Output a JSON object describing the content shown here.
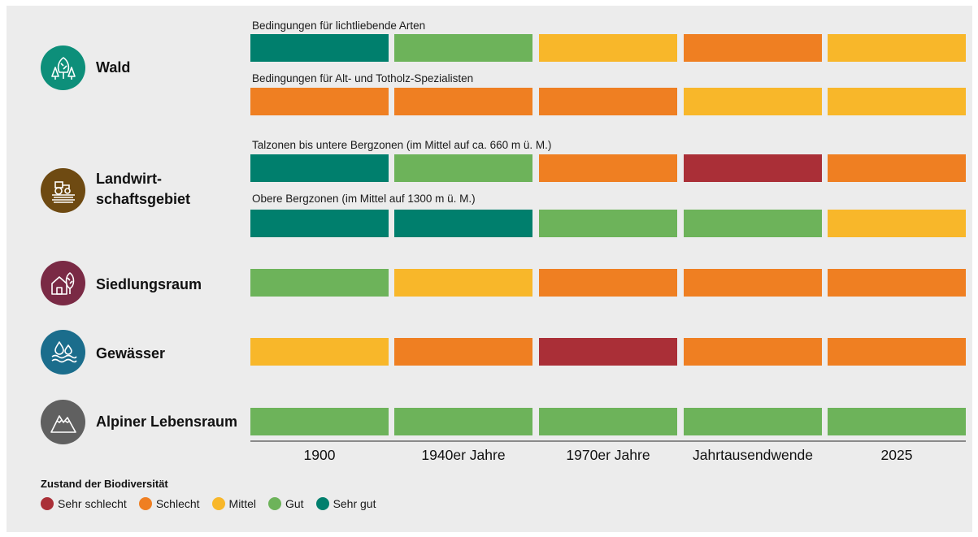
{
  "chart_data": {
    "type": "heatmap",
    "title": "",
    "categories": [
      "1900",
      "1940er Jahre",
      "1970er Jahre",
      "Jahrtausendwende",
      "2025"
    ],
    "legend": {
      "title": "Zustand der Biodiversität",
      "levels": [
        {
          "key": "sehr_schlecht",
          "label": "Sehr schlecht",
          "color": "#aa2f37"
        },
        {
          "key": "schlecht",
          "label": "Schlecht",
          "color": "#ef7f22"
        },
        {
          "key": "mittel",
          "label": "Mittel",
          "color": "#f8b72a"
        },
        {
          "key": "gut",
          "label": "Gut",
          "color": "#6db35a"
        },
        {
          "key": "sehr_gut",
          "label": "Sehr gut",
          "color": "#007f6d"
        }
      ]
    },
    "habitats": [
      {
        "label": "Wald",
        "icon": "forest-icon",
        "color": "#0d8f7a",
        "rows": [
          {
            "label": "Bedingungen für lichtliebende Arten",
            "values": [
              "sehr_gut",
              "gut",
              "mittel",
              "schlecht",
              "mittel"
            ]
          },
          {
            "label": "Bedingungen für Alt- und Totholz-Spezialisten",
            "values": [
              "schlecht",
              "schlecht",
              "schlecht",
              "mittel",
              "mittel"
            ]
          }
        ]
      },
      {
        "label": "Landwirt-\nschaftsgebiet",
        "icon": "tractor-field-icon",
        "color": "#6e4a12",
        "rows": [
          {
            "label": "Talzonen bis untere Bergzonen (im Mittel auf ca. 660 m ü. M.)",
            "values": [
              "sehr_gut",
              "gut",
              "schlecht",
              "sehr_schlecht",
              "schlecht"
            ]
          },
          {
            "label": "Obere Bergzonen (im Mittel auf 1300 m ü. M.)",
            "values": [
              "sehr_gut",
              "sehr_gut",
              "gut",
              "gut",
              "mittel"
            ]
          }
        ]
      },
      {
        "label": "Siedlungsraum",
        "icon": "house-tree-icon",
        "color": "#7a2a45",
        "rows": [
          {
            "label": "",
            "values": [
              "gut",
              "mittel",
              "schlecht",
              "schlecht",
              "schlecht"
            ]
          }
        ]
      },
      {
        "label": "Gewässer",
        "icon": "water-drops-icon",
        "color": "#1b6d8c",
        "rows": [
          {
            "label": "",
            "values": [
              "mittel",
              "schlecht",
              "sehr_schlecht",
              "schlecht",
              "schlecht"
            ]
          }
        ]
      },
      {
        "label": "Alpiner Lebensraum",
        "icon": "mountain-icon",
        "color": "#606060",
        "rows": [
          {
            "label": "",
            "values": [
              "gut",
              "gut",
              "gut",
              "gut",
              "gut"
            ]
          }
        ]
      }
    ]
  }
}
